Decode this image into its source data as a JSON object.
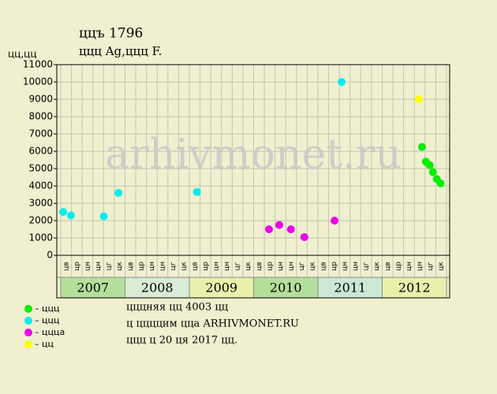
{
  "chart_data": {
    "type": "scatter",
    "title": "ццъ 1796",
    "subtitle": "ццц Ag,ццц F.",
    "y_label": "цц,цц",
    "watermark": "arhivmonet.ru",
    "xlim": [
      2006.94,
      2013.05
    ],
    "ylim": [
      0,
      11000
    ],
    "yticks": [
      0,
      1000,
      2000,
      3000,
      4000,
      5000,
      6000,
      7000,
      8000,
      9000,
      10000,
      11000
    ],
    "grid": true,
    "years": [
      "2007",
      "2008",
      "2009",
      "2010",
      "2011",
      "2012"
    ],
    "year_colors": [
      "#b4e09c",
      "#d8ecd4",
      "#e8f0ac",
      "#b4e09c",
      "#cce8d4",
      "#e8f0ac"
    ],
    "period_labels": [
      "цв",
      "цр",
      "цн",
      "цн",
      "цг",
      "цк"
    ],
    "series": [
      {
        "name": "– ццц",
        "color": "#00ee00",
        "x": [
          2012.62,
          2012.68,
          2012.74,
          2012.79,
          2012.85,
          2012.91
        ],
        "values": [
          6250,
          5400,
          5200,
          4800,
          4400,
          4150
        ]
      },
      {
        "name": "– ццц",
        "color": "#00eeee",
        "x": [
          2007.04,
          2007.16,
          2007.67,
          2007.9,
          2009.12,
          2011.37
        ],
        "values": [
          2500,
          2300,
          2250,
          3600,
          3650,
          10000
        ]
      },
      {
        "name": "– цццa",
        "color": "#ee00ee",
        "x": [
          2010.24,
          2010.4,
          2010.58,
          2010.79,
          2011.26
        ],
        "values": [
          1500,
          1750,
          1500,
          1050,
          2000
        ]
      },
      {
        "name": "– цц",
        "color": "#ffff00",
        "x": [
          2012.57
        ],
        "values": [
          9000
        ]
      }
    ],
    "notes": [
      "цццняя цц 4003 цц",
      "ц ццццим ццa ARHIVMONET.RU",
      "ццц ц 20 ця 2017 цц."
    ]
  }
}
